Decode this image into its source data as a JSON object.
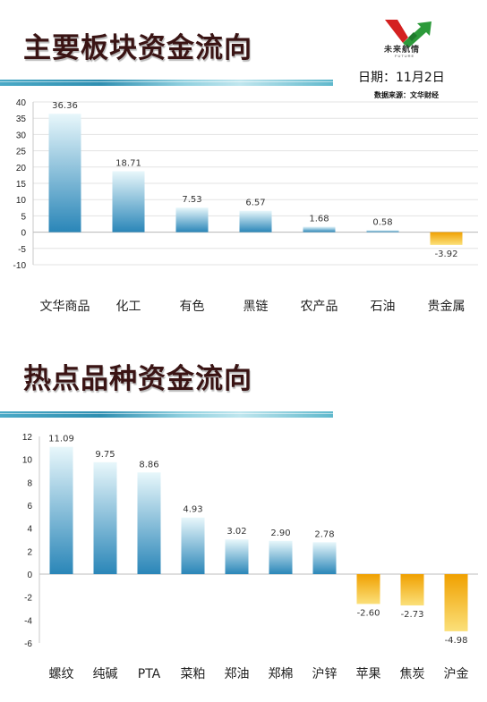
{
  "header": {
    "date_label": "日期：11月2日",
    "source_label": "数据来源：文华财经",
    "logo_text": "未来航情",
    "logo_sub": "FUTURE"
  },
  "sections": {
    "top_title": "主要板块资金流向",
    "bottom_title": "热点品种资金流向"
  },
  "chart_data": [
    {
      "type": "bar",
      "title": "主要板块资金流向",
      "categories": [
        "文华商品",
        "化工",
        "有色",
        "黑链",
        "农产品",
        "石油",
        "贵金属"
      ],
      "values": [
        36.36,
        18.71,
        7.53,
        6.57,
        1.68,
        0.58,
        -3.92
      ],
      "value_labels": [
        "36.36",
        "18.71",
        "7.53",
        "6.57",
        "1.68",
        "0.58",
        "-3.92"
      ],
      "ylim": [
        -10,
        40
      ],
      "yticks": [
        40,
        35,
        30,
        25,
        20,
        15,
        10,
        5,
        0,
        -5,
        -10
      ],
      "ytick_labels": [
        "40",
        "35",
        "30",
        "25",
        "20",
        "15",
        "10",
        "5",
        "0",
        "-5",
        "-10"
      ],
      "grid": true,
      "colors": {
        "positive_top": "#e8f7fb",
        "positive_bottom": "#2a86b8",
        "negative_top": "#f0a000",
        "negative_bottom": "#fbe07a"
      }
    },
    {
      "type": "bar",
      "title": "热点品种资金流向",
      "categories": [
        "螺纹",
        "纯碱",
        "PTA",
        "菜粕",
        "郑油",
        "郑棉",
        "沪锌",
        "苹果",
        "焦炭",
        "沪金"
      ],
      "values": [
        11.09,
        9.75,
        8.86,
        4.93,
        3.02,
        2.9,
        2.78,
        -2.6,
        -2.73,
        -4.98
      ],
      "value_labels": [
        "11.09",
        "9.75",
        "8.86",
        "4.93",
        "3.02",
        "2.90",
        "2.78",
        "-2.60",
        "-2.73",
        "-4.98"
      ],
      "ylim": [
        -6,
        12
      ],
      "yticks": [
        12,
        10,
        8,
        6,
        4,
        2,
        0,
        -2,
        -4,
        -6
      ],
      "ytick_labels": [
        "12",
        "10",
        "8",
        "6",
        "4",
        "2",
        "0",
        "-2",
        "-4",
        "-6"
      ],
      "grid": false,
      "colors": {
        "positive_top": "#e8f7fb",
        "positive_bottom": "#2a86b8",
        "negative_top": "#f0a000",
        "negative_bottom": "#fbe07a"
      }
    }
  ]
}
